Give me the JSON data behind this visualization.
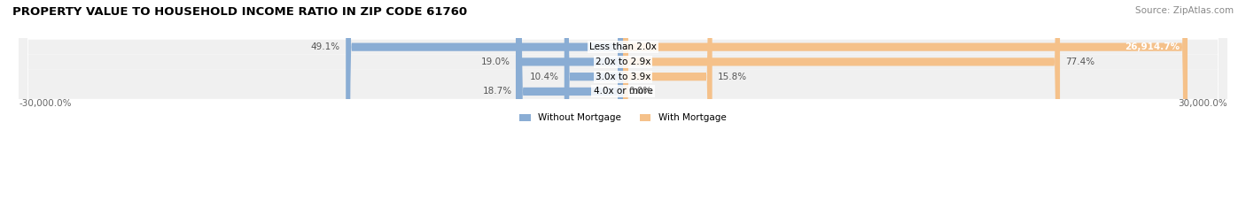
{
  "title": "PROPERTY VALUE TO HOUSEHOLD INCOME RATIO IN ZIP CODE 61760",
  "source": "Source: ZipAtlas.com",
  "categories": [
    "Less than 2.0x",
    "2.0x to 2.9x",
    "3.0x to 3.9x",
    "4.0x or more"
  ],
  "without_mortgage": [
    49.1,
    19.0,
    10.4,
    18.7
  ],
  "with_mortgage": [
    26914.7,
    77.4,
    15.8,
    0.0
  ],
  "without_mortgage_color": "#8aadd4",
  "with_mortgage_color": "#f5c18a",
  "row_bg_color": "#f0f0f0",
  "x_label_left": "-30,000.0%",
  "x_label_right": "30,000.0%",
  "legend_without": "Without Mortgage",
  "legend_with": "With Mortgage",
  "title_fontsize": 9.5,
  "source_fontsize": 7.5,
  "label_fontsize": 7.5,
  "max_val": 30000
}
